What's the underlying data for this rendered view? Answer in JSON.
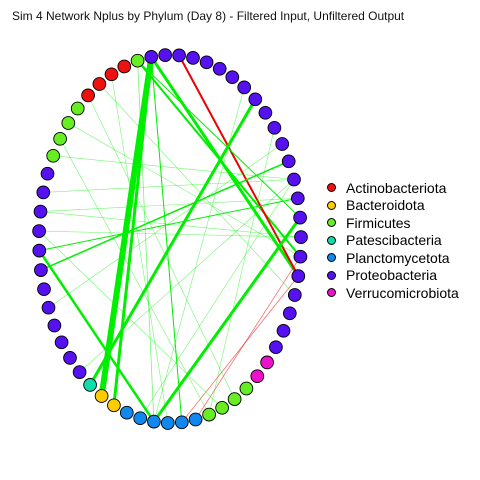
{
  "title": "Sim 4 Network Nplus by Phylum (Day 8) - Filtered Input, Unfiltered Output",
  "colors": {
    "Actinobacteriota": "#ee1111",
    "Bacteroidota": "#ffcc00",
    "Firmicutes": "#66ee22",
    "Patescibacteria": "#11ddaa",
    "Planctomycetota": "#1188ee",
    "Proteobacteria": "#5511ee",
    "Verrucomicrobiota": "#ee11cc",
    "edge_positive": "#00ee00",
    "edge_negative": "#ee0000"
  },
  "legend": [
    {
      "label": "Actinobacteriota",
      "color": "#ee1111"
    },
    {
      "label": "Bacteroidota",
      "color": "#ffcc00"
    },
    {
      "label": "Firmicutes",
      "color": "#66ee22"
    },
    {
      "label": "Patescibacteria",
      "color": "#11ddaa"
    },
    {
      "label": "Planctomycetota",
      "color": "#1188ee"
    },
    {
      "label": "Proteobacteria",
      "color": "#5511ee"
    },
    {
      "label": "Verrucomicrobiota",
      "color": "#ee11cc"
    }
  ],
  "nodes": [
    "Proteobacteria",
    "Proteobacteria",
    "Proteobacteria",
    "Proteobacteria",
    "Proteobacteria",
    "Proteobacteria",
    "Proteobacteria",
    "Proteobacteria",
    "Proteobacteria",
    "Proteobacteria",
    "Proteobacteria",
    "Proteobacteria",
    "Proteobacteria",
    "Proteobacteria",
    "Proteobacteria",
    "Proteobacteria",
    "Proteobacteria",
    "Proteobacteria",
    "Proteobacteria",
    "Proteobacteria",
    "Proteobacteria",
    "Verrucomicrobiota",
    "Verrucomicrobiota",
    "Firmicutes",
    "Firmicutes",
    "Firmicutes",
    "Firmicutes",
    "Planctomycetota",
    "Planctomycetota",
    "Planctomycetota",
    "Planctomycetota",
    "Planctomycetota",
    "Planctomycetota",
    "Bacteroidota",
    "Bacteroidota",
    "Patescibacteria",
    "Proteobacteria",
    "Proteobacteria",
    "Proteobacteria",
    "Proteobacteria",
    "Proteobacteria",
    "Proteobacteria",
    "Proteobacteria",
    "Proteobacteria",
    "Proteobacteria",
    "Proteobacteria",
    "Proteobacteria",
    "Proteobacteria",
    "Firmicutes",
    "Firmicutes",
    "Firmicutes",
    "Firmicutes",
    "Actinobacteriota",
    "Actinobacteriota",
    "Actinobacteriota",
    "Actinobacteriota",
    "Firmicutes",
    "Proteobacteria",
    "Proteobacteria"
  ],
  "edges": [
    {
      "from": 57,
      "to": 34,
      "weight": 6,
      "sign": "positive"
    },
    {
      "from": 57,
      "to": 33,
      "weight": 3,
      "sign": "positive"
    },
    {
      "from": 57,
      "to": 16,
      "weight": 3,
      "sign": "positive"
    },
    {
      "from": 56,
      "to": 15,
      "weight": 2,
      "sign": "positive"
    },
    {
      "from": 57,
      "to": 28,
      "weight": 1,
      "sign": "positive"
    },
    {
      "from": 0,
      "to": 16,
      "weight": 2,
      "sign": "negative"
    },
    {
      "from": 6,
      "to": 35,
      "weight": 3,
      "sign": "positive"
    },
    {
      "from": 13,
      "to": 30,
      "weight": 3,
      "sign": "positive"
    },
    {
      "from": 43,
      "to": 30,
      "weight": 2.5,
      "sign": "positive"
    },
    {
      "from": 10,
      "to": 42,
      "weight": 1.5,
      "sign": "positive"
    },
    {
      "from": 12,
      "to": 43,
      "weight": 1,
      "sign": "positive"
    },
    {
      "from": 56,
      "to": 13,
      "weight": 1,
      "sign": "positive"
    },
    {
      "from": 56,
      "to": 30,
      "weight": 0.8,
      "sign": "positive"
    },
    {
      "from": 16,
      "to": 28,
      "weight": 0.8,
      "sign": "negative"
    },
    {
      "from": 15,
      "to": 27,
      "weight": 0.8,
      "sign": "negative"
    },
    {
      "from": 52,
      "to": 24,
      "weight": 0.6,
      "sign": "positive"
    },
    {
      "from": 50,
      "to": 15,
      "weight": 0.6,
      "sign": "positive"
    },
    {
      "from": 49,
      "to": 26,
      "weight": 0.6,
      "sign": "positive"
    },
    {
      "from": 48,
      "to": 11,
      "weight": 0.6,
      "sign": "positive"
    },
    {
      "from": 46,
      "to": 11,
      "weight": 0.6,
      "sign": "positive"
    },
    {
      "from": 44,
      "to": 25,
      "weight": 0.6,
      "sign": "positive"
    },
    {
      "from": 45,
      "to": 14,
      "weight": 0.6,
      "sign": "positive"
    },
    {
      "from": 36,
      "to": 11,
      "weight": 0.6,
      "sign": "positive"
    },
    {
      "from": 40,
      "to": 9,
      "weight": 0.6,
      "sign": "positive"
    },
    {
      "from": 54,
      "to": 29,
      "weight": 0.6,
      "sign": "positive"
    },
    {
      "from": 17,
      "to": 53,
      "weight": 0.6,
      "sign": "positive"
    },
    {
      "from": 5,
      "to": 30,
      "weight": 0.6,
      "sign": "positive"
    },
    {
      "from": 8,
      "to": 26,
      "weight": 0.6,
      "sign": "positive"
    },
    {
      "from": 11,
      "to": 31,
      "weight": 0.6,
      "sign": "positive"
    },
    {
      "from": 45,
      "to": 12,
      "weight": 0.6,
      "sign": "positive"
    },
    {
      "from": 44,
      "to": 14,
      "weight": 0.6,
      "sign": "positive"
    }
  ]
}
